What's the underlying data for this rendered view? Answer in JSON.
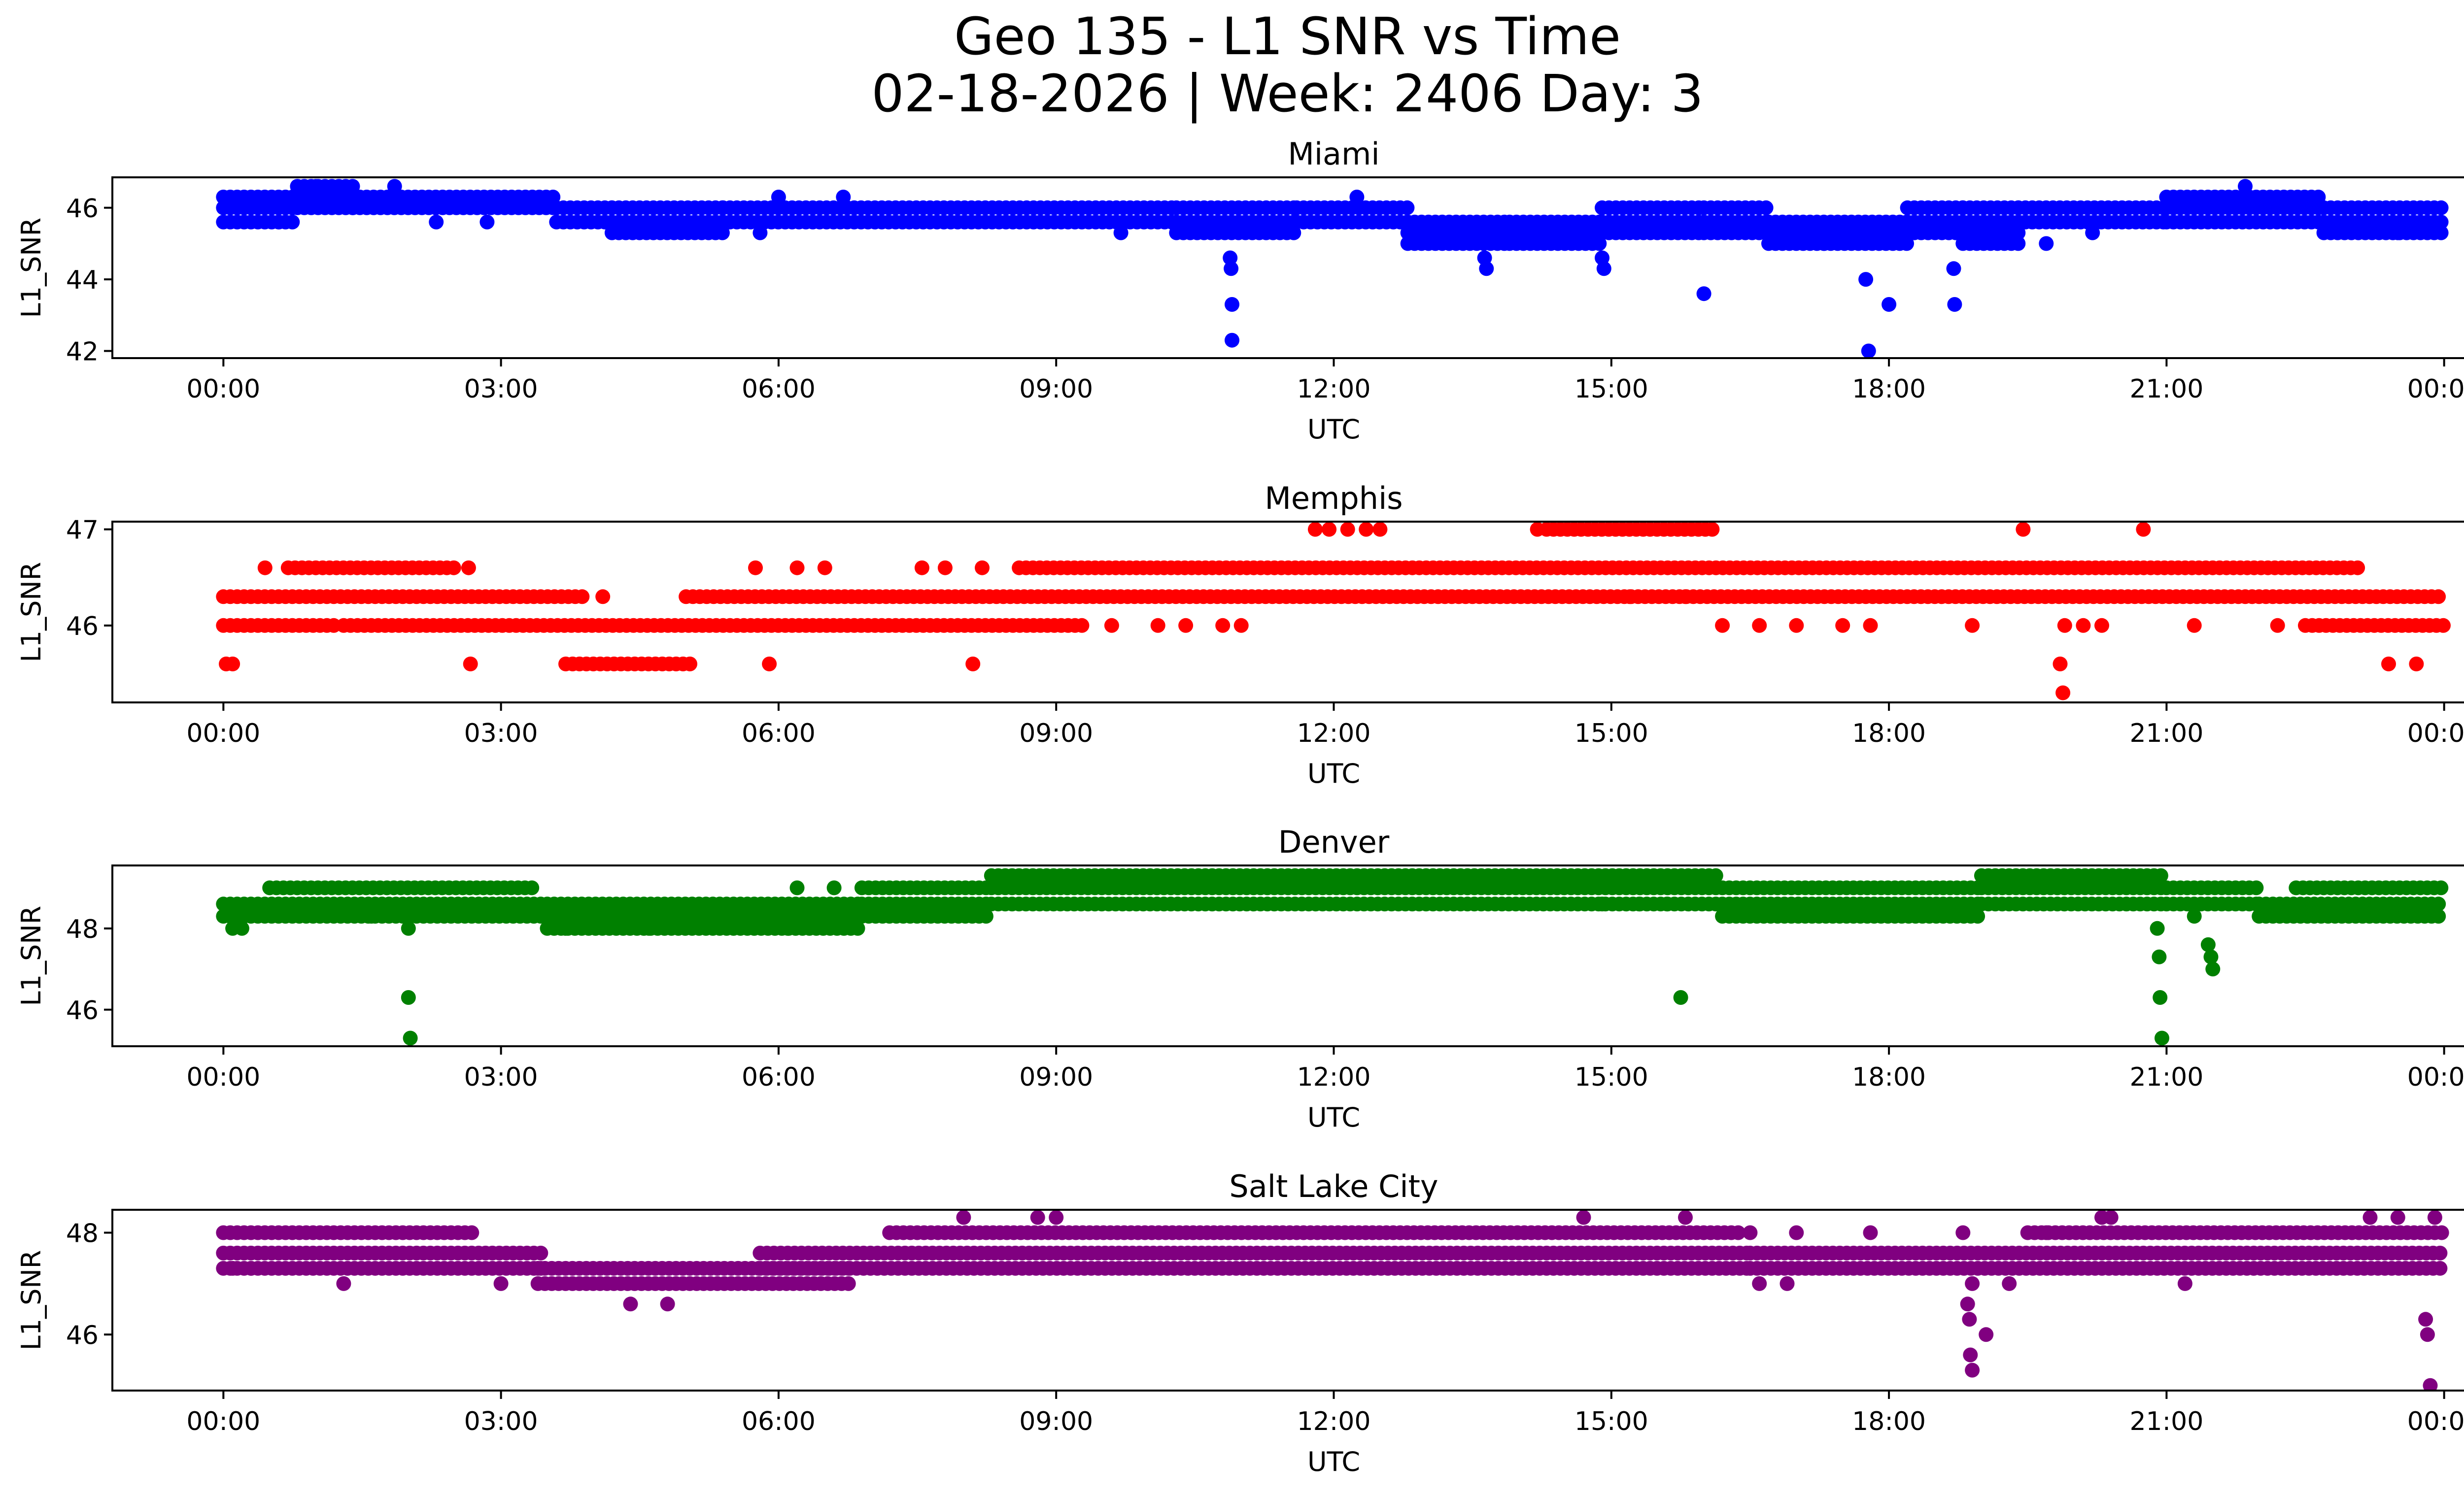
{
  "title_line1": "Geo 135 - L1 SNR vs Time",
  "title_line2": "02-18-2026 | Week: 2406 Day: 3",
  "chart_data": [
    {
      "type": "scatter",
      "title": "Miami",
      "xlabel": "UTC",
      "ylabel": "L1_SNR",
      "color": "#0000ff",
      "xlim": [
        -1.2,
        25.2
      ],
      "ylim": [
        41.8,
        46.85
      ],
      "yticks": [
        42,
        44,
        46
      ],
      "xticks": [
        "00:00",
        "03:00",
        "06:00",
        "09:00",
        "12:00",
        "15:00",
        "18:00",
        "21:00",
        "00:00"
      ],
      "bands": [
        {
          "x": [
            0.0,
            0.8
          ],
          "levels": [
            45.6,
            46.0,
            46.3
          ]
        },
        {
          "x": [
            0.8,
            1.4
          ],
          "levels": [
            46.0,
            46.3,
            46.6
          ]
        },
        {
          "x": [
            1.4,
            3.6
          ],
          "levels": [
            46.0,
            46.3
          ]
        },
        {
          "x": [
            3.6,
            4.2
          ],
          "levels": [
            45.6,
            46.0
          ]
        },
        {
          "x": [
            4.2,
            5.4
          ],
          "levels": [
            45.3,
            45.6,
            46.0
          ]
        },
        {
          "x": [
            5.4,
            10.3
          ],
          "levels": [
            45.6,
            46.0
          ]
        },
        {
          "x": [
            10.3,
            11.6
          ],
          "levels": [
            45.3,
            45.6,
            46.0
          ]
        },
        {
          "x": [
            11.6,
            12.8
          ],
          "levels": [
            45.6,
            46.0
          ]
        },
        {
          "x": [
            12.8,
            13.9
          ],
          "levels": [
            45.0,
            45.3,
            45.6
          ]
        },
        {
          "x": [
            13.9,
            14.9
          ],
          "levels": [
            45.0,
            45.3,
            45.6
          ]
        },
        {
          "x": [
            14.9,
            16.0
          ],
          "levels": [
            45.3,
            45.6,
            46.0
          ]
        },
        {
          "x": [
            16.0,
            16.7
          ],
          "levels": [
            45.3,
            45.6,
            46.0
          ]
        },
        {
          "x": [
            16.7,
            18.2
          ],
          "levels": [
            45.0,
            45.3,
            45.6
          ]
        },
        {
          "x": [
            18.2,
            18.8
          ],
          "levels": [
            45.3,
            45.6,
            46.0
          ]
        },
        {
          "x": [
            18.8,
            19.4
          ],
          "levels": [
            45.0,
            45.3,
            45.6,
            46.0
          ]
        },
        {
          "x": [
            19.4,
            21.0
          ],
          "levels": [
            45.6,
            46.0
          ]
        },
        {
          "x": [
            21.0,
            22.7
          ],
          "levels": [
            45.6,
            46.0,
            46.3
          ]
        },
        {
          "x": [
            22.7,
            24.0
          ],
          "levels": [
            45.3,
            45.6,
            46.0
          ]
        }
      ],
      "points": [
        [
          10.88,
          44.6
        ],
        [
          10.89,
          44.3
        ],
        [
          10.9,
          43.3
        ],
        [
          10.9,
          42.3
        ],
        [
          13.63,
          44.6
        ],
        [
          13.65,
          44.3
        ],
        [
          14.9,
          44.6
        ],
        [
          14.92,
          44.3
        ],
        [
          16.0,
          43.6
        ],
        [
          17.75,
          44.0
        ],
        [
          17.78,
          42.0
        ],
        [
          18.0,
          43.3
        ],
        [
          18.7,
          44.3
        ],
        [
          18.71,
          43.3
        ],
        [
          0.8,
          46.6
        ],
        [
          1.0,
          46.6
        ],
        [
          1.85,
          46.6
        ],
        [
          21.85,
          46.6
        ],
        [
          6.0,
          46.3
        ],
        [
          6.7,
          46.3
        ],
        [
          12.25,
          46.3
        ],
        [
          2.3,
          45.6
        ],
        [
          2.85,
          45.6
        ],
        [
          0.6,
          45.6
        ],
        [
          5.8,
          45.3
        ],
        [
          9.7,
          45.3
        ],
        [
          17.3,
          45.0
        ],
        [
          19.7,
          45.0
        ],
        [
          20.2,
          45.3
        ],
        [
          23.5,
          45.3
        ]
      ]
    },
    {
      "type": "scatter",
      "title": "Memphis",
      "xlabel": "UTC",
      "ylabel": "L1_SNR",
      "color": "#ff0000",
      "xlim": [
        -1.2,
        25.2
      ],
      "ylim": [
        45.2,
        47.08
      ],
      "yticks": [
        46,
        47
      ],
      "xticks": [
        "00:00",
        "03:00",
        "06:00",
        "09:00",
        "12:00",
        "15:00",
        "18:00",
        "21:00",
        "00:00"
      ],
      "bands": [
        {
          "x": [
            0.0,
            3.9
          ],
          "levels": [
            46.3
          ]
        },
        {
          "x": [
            0.0,
            1.2
          ],
          "levels": [
            46.0
          ]
        },
        {
          "x": [
            1.3,
            9.3
          ],
          "levels": [
            46.0
          ]
        },
        {
          "x": [
            0.7,
            2.5
          ],
          "levels": [
            46.6
          ]
        },
        {
          "x": [
            3.7,
            5.1
          ],
          "levels": [
            45.6
          ]
        },
        {
          "x": [
            5.0,
            24.0
          ],
          "levels": [
            46.3
          ]
        },
        {
          "x": [
            8.6,
            23.1
          ],
          "levels": [
            46.6
          ]
        },
        {
          "x": [
            14.3,
            16.1
          ],
          "levels": [
            47.0
          ]
        },
        {
          "x": [
            22.5,
            24.0
          ],
          "levels": [
            46.0
          ]
        }
      ],
      "points": [
        [
          0.03,
          45.6
        ],
        [
          0.1,
          45.6
        ],
        [
          2.67,
          45.6
        ],
        [
          5.9,
          45.6
        ],
        [
          8.1,
          45.6
        ],
        [
          23.4,
          45.6
        ],
        [
          23.7,
          45.6
        ],
        [
          19.85,
          45.6
        ],
        [
          19.88,
          45.3
        ],
        [
          19.9,
          46.0
        ],
        [
          0.45,
          46.6
        ],
        [
          2.65,
          46.6
        ],
        [
          5.75,
          46.6
        ],
        [
          6.2,
          46.6
        ],
        [
          6.5,
          46.6
        ],
        [
          7.55,
          46.6
        ],
        [
          7.8,
          46.6
        ],
        [
          8.2,
          46.6
        ],
        [
          4.1,
          46.3
        ],
        [
          11.8,
          47.0
        ],
        [
          11.95,
          47.0
        ],
        [
          12.15,
          47.0
        ],
        [
          12.35,
          47.0
        ],
        [
          12.5,
          47.0
        ],
        [
          14.2,
          47.0
        ],
        [
          19.45,
          47.0
        ],
        [
          20.75,
          47.0
        ],
        [
          9.6,
          46.0
        ],
        [
          10.1,
          46.0
        ],
        [
          10.4,
          46.0
        ],
        [
          10.8,
          46.0
        ],
        [
          11.0,
          46.0
        ],
        [
          16.2,
          46.0
        ],
        [
          16.6,
          46.0
        ],
        [
          17.0,
          46.0
        ],
        [
          17.5,
          46.0
        ],
        [
          17.8,
          46.0
        ],
        [
          18.9,
          46.0
        ],
        [
          20.1,
          46.0
        ],
        [
          20.3,
          46.0
        ],
        [
          21.3,
          46.0
        ],
        [
          22.2,
          46.0
        ],
        [
          15.8,
          46.3
        ],
        [
          15.2,
          46.3
        ]
      ]
    },
    {
      "type": "scatter",
      "title": "Denver",
      "xlabel": "UTC",
      "ylabel": "L1_SNR",
      "color": "#008000",
      "xlim": [
        -1.2,
        25.2
      ],
      "ylim": [
        45.1,
        49.55
      ],
      "yticks": [
        46,
        48
      ],
      "xticks": [
        "00:00",
        "03:00",
        "06:00",
        "09:00",
        "12:00",
        "15:00",
        "18:00",
        "21:00",
        "00:00"
      ],
      "bands": [
        {
          "x": [
            0.0,
            3.5
          ],
          "levels": [
            48.3,
            48.6
          ]
        },
        {
          "x": [
            0.5,
            3.4
          ],
          "levels": [
            49.0
          ]
        },
        {
          "x": [
            3.5,
            6.9
          ],
          "levels": [
            48.0,
            48.3,
            48.6
          ]
        },
        {
          "x": [
            6.9,
            8.3
          ],
          "levels": [
            48.3,
            48.6,
            49.0
          ]
        },
        {
          "x": [
            8.3,
            16.2
          ],
          "levels": [
            48.6,
            49.0,
            49.3
          ]
        },
        {
          "x": [
            16.2,
            19.0
          ],
          "levels": [
            48.3,
            48.6,
            49.0
          ]
        },
        {
          "x": [
            19.0,
            21.0
          ],
          "levels": [
            48.6,
            49.0,
            49.3
          ]
        },
        {
          "x": [
            21.0,
            22.0
          ],
          "levels": [
            48.6,
            49.0
          ]
        },
        {
          "x": [
            22.0,
            24.0
          ],
          "levels": [
            48.3,
            48.6
          ]
        },
        {
          "x": [
            22.4,
            24.0
          ],
          "levels": [
            49.0
          ]
        }
      ],
      "points": [
        [
          0.1,
          48.0
        ],
        [
          0.2,
          48.0
        ],
        [
          2.0,
          46.3
        ],
        [
          2.02,
          45.3
        ],
        [
          2.0,
          48.0
        ],
        [
          15.75,
          46.3
        ],
        [
          20.9,
          48.0
        ],
        [
          20.92,
          47.3
        ],
        [
          20.93,
          46.3
        ],
        [
          20.95,
          45.3
        ],
        [
          21.45,
          47.6
        ],
        [
          21.48,
          47.3
        ],
        [
          21.5,
          47.0
        ],
        [
          6.1,
          48.0
        ],
        [
          3.7,
          48.0
        ],
        [
          4.6,
          48.0
        ],
        [
          1.6,
          48.3
        ],
        [
          21.3,
          48.3
        ],
        [
          6.2,
          49.0
        ],
        [
          6.6,
          49.0
        ],
        [
          14.9,
          48.6
        ],
        [
          15.3,
          48.6
        ],
        [
          15.6,
          48.6
        ]
      ]
    },
    {
      "type": "scatter",
      "title": "Salt Lake City",
      "xlabel": "UTC",
      "ylabel": "L1_SNR",
      "color": "#800080",
      "xlim": [
        -1.2,
        25.2
      ],
      "ylim": [
        44.9,
        48.45
      ],
      "yticks": [
        46,
        48
      ],
      "xticks": [
        "00:00",
        "03:00",
        "06:00",
        "09:00",
        "12:00",
        "15:00",
        "18:00",
        "21:00",
        "00:00"
      ],
      "bands": [
        {
          "x": [
            0.0,
            3.5
          ],
          "levels": [
            47.3,
            47.6
          ]
        },
        {
          "x": [
            0.0,
            2.7
          ],
          "levels": [
            48.0
          ]
        },
        {
          "x": [
            3.4,
            6.8
          ],
          "levels": [
            47.0,
            47.3
          ]
        },
        {
          "x": [
            5.8,
            16.5
          ],
          "levels": [
            47.3,
            47.6
          ]
        },
        {
          "x": [
            7.2,
            16.4
          ],
          "levels": [
            48.0
          ]
        },
        {
          "x": [
            16.5,
            24.0
          ],
          "levels": [
            47.3,
            47.6
          ]
        },
        {
          "x": [
            19.5,
            24.0
          ],
          "levels": [
            48.0
          ]
        }
      ],
      "points": [
        [
          18.85,
          46.6
        ],
        [
          18.87,
          46.3
        ],
        [
          18.88,
          45.6
        ],
        [
          18.9,
          45.3
        ],
        [
          19.05,
          46.0
        ],
        [
          23.8,
          46.3
        ],
        [
          23.82,
          46.0
        ],
        [
          23.85,
          45.0
        ],
        [
          4.4,
          46.6
        ],
        [
          4.8,
          46.6
        ],
        [
          1.3,
          47.0
        ],
        [
          3.0,
          47.0
        ],
        [
          16.6,
          47.0
        ],
        [
          16.9,
          47.0
        ],
        [
          18.9,
          47.0
        ],
        [
          19.3,
          47.0
        ],
        [
          21.2,
          47.0
        ],
        [
          8.0,
          48.3
        ],
        [
          8.8,
          48.3
        ],
        [
          9.0,
          48.3
        ],
        [
          14.7,
          48.3
        ],
        [
          15.8,
          48.3
        ],
        [
          20.3,
          48.3
        ],
        [
          20.4,
          48.3
        ],
        [
          23.2,
          48.3
        ],
        [
          23.5,
          48.3
        ],
        [
          23.9,
          48.3
        ],
        [
          18.8,
          48.0
        ],
        [
          17.8,
          48.0
        ],
        [
          16.5,
          48.0
        ],
        [
          19.7,
          48.0
        ],
        [
          17.0,
          48.0
        ],
        [
          0.1,
          47.3
        ],
        [
          0.3,
          47.3
        ]
      ]
    }
  ]
}
